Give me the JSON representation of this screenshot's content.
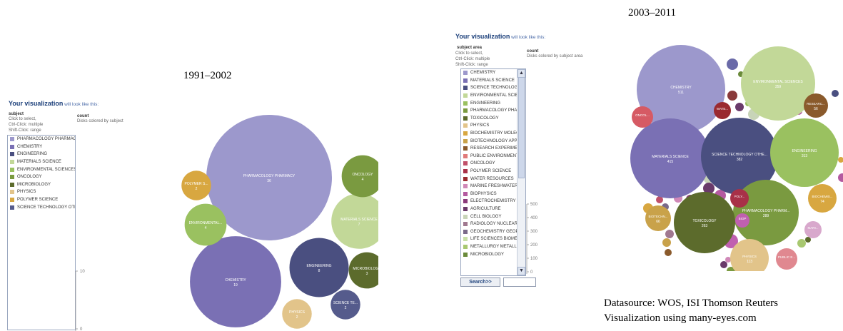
{
  "colors": {
    "PHARMACOLOGY PHARMACY": "#9c98cc",
    "CHEMISTRY": "#7a70b4",
    "ENGINEERING": "#4a4f80",
    "MATERIALS SCIENCE": "#c2d898",
    "ENVIRONMENTAL SCIENCES ECOLOGY": "#9ac160",
    "ONCOLOGY": "#7a9a40",
    "MICROBIOLOGY": "#5c6b2c",
    "PHYSICS": "#e2c48a",
    "POLYMER SCIENCE": "#d8a740",
    "SCIENCE TECHNOLOGY OTHER TOPICS": "#555b8c"
  },
  "left": {
    "title_bold": "Your visualization",
    "title_sub": " will look like this:",
    "subject_label": "subject",
    "hints": [
      "Click to select,",
      "Ctrl-Click: multiple",
      "Shift-Click: range"
    ],
    "count_label": "count",
    "count_desc": "Disks colored by subject",
    "legend": [
      "PHARMACOLOGY PHARMACY",
      "CHEMISTRY",
      "ENGINEERING",
      "MATERIALS SCIENCE",
      "ENVIRONMENTAL SCIENCES EC",
      "ONCOLOGY",
      "MICROBIOLOGY",
      "PHYSICS",
      "POLYMER SCIENCE",
      "SCIENCE TECHNOLOGY OTHER"
    ],
    "legend_colors": [
      "#9c98cc",
      "#7a70b4",
      "#4a4f80",
      "#c2d898",
      "#9ac160",
      "#7a9a40",
      "#5c6b2c",
      "#e2c48a",
      "#d8a740",
      "#555b8c"
    ],
    "size_ticks": [
      "10",
      "0"
    ],
    "period": "1991–2002"
  },
  "right": {
    "title_bold": "Your visualization",
    "title_sub": " will look like this:",
    "subject_label": "subject area",
    "hints": [
      "Click to select,",
      "Ctrl-Click: multiple",
      "Shift-Click: range"
    ],
    "count_label": "count",
    "count_desc": "Disks colored by subject area",
    "legend": [
      "CHEMISTRY",
      "MATERIALS SCIENCE",
      "SCIENCE TECHNOLOGY OTI",
      "ENVIRONMENTAL SCIENCE",
      "ENGINEERING",
      "PHARMACOLOGY PHARMA",
      "TOXICOLOGY",
      "PHYSICS",
      "BIOCHEMISTRY MOLECULA",
      "BIOTECHNOLOGY APPLIED",
      "RESEARCH EXPERIMENTAL",
      "PUBLIC ENVIRONMENTAL C",
      "ONCOLOGY",
      "POLYMER SCIENCE",
      "WATER RESOURCES",
      "MARINE FRESHWATER BIO",
      "BIOPHYSICS",
      "ELECTROCHEMISTRY",
      "AGRICULTURE",
      "CELL BIOLOGY",
      "RADIOLOGY NUCLEAR MED",
      "GEOCHEMISTRY GEOPHYSI",
      "LIFE SCIENCES BIOMEDICII",
      "METALLURGY METALLURGI",
      "MICROBIOLOGY"
    ],
    "legend_colors": [
      "#9c98cc",
      "#7a70b4",
      "#4a4f80",
      "#c2d898",
      "#9ac160",
      "#7a9a40",
      "#5c6b2c",
      "#e2c48a",
      "#d8a740",
      "#c9a24a",
      "#8a5a2c",
      "#e07a7a",
      "#c0506a",
      "#a83048",
      "#9a2a30",
      "#d088b8",
      "#b45aa0",
      "#8a3a7a",
      "#6a3a6a",
      "#c8d4b8",
      "#a07890",
      "#7a6a8a",
      "#c8e0a8",
      "#a8c870",
      "#6a8a3a"
    ],
    "size_ticks": [
      "500",
      "400",
      "300",
      "200",
      "100",
      "0"
    ],
    "search_label": "Search>>",
    "period": "2003–2011"
  },
  "source_lines": [
    "Datasource: WOS, ISI Thomson Reuters",
    "Visualization using many-eyes.com"
  ],
  "chart_data": [
    {
      "type": "bubble",
      "title": "1991–2002",
      "series": [
        {
          "name": "PHARMACOLOGY PHARMACY",
          "label": "PHARMACOLOGY PHARMACY",
          "value": 36
        },
        {
          "name": "CHEMISTRY",
          "label": "CHEMISTRY",
          "value": 19
        },
        {
          "name": "ENGINEERING",
          "label": "ENGINEERING",
          "value": 8
        },
        {
          "name": "MATERIALS SCIENCE",
          "label": "MATERIALS SCIENCE",
          "value": 7
        },
        {
          "name": "ENVIRONMENTAL SCIENCES ECOLOGY",
          "label": "ENVIRONMENTAL...",
          "value": 4
        },
        {
          "name": "ONCOLOGY",
          "label": "ONCOLOGY",
          "value": 4
        },
        {
          "name": "MICROBIOLOGY",
          "label": "MICROBIOLOGY",
          "value": 3
        },
        {
          "name": "PHYSICS",
          "label": "PHYSICS",
          "value": 2
        },
        {
          "name": "POLYMER SCIENCE",
          "label": "POLYMER S...",
          "value": 2
        },
        {
          "name": "SCIENCE TECHNOLOGY OTHER TOPICS",
          "label": "SCIENCE TE...",
          "value": 2
        }
      ]
    },
    {
      "type": "bubble",
      "title": "2003–2011",
      "series": [
        {
          "name": "CHEMISTRY",
          "label": "CHEMISTRY",
          "value": 511
        },
        {
          "name": "MATERIALS SCIENCE",
          "label": "MATERIALS SCIENCE",
          "value": 415
        },
        {
          "name": "SCIENCE TECHNOLOGY OTHER",
          "label": "SCIENCE TECHNOLOGY OTHE...",
          "value": 382
        },
        {
          "name": "ENVIRONMENTAL SCIENCES",
          "label": "ENVIRONMENTAL SCIENCES",
          "value": 359
        },
        {
          "name": "ENGINEERING",
          "label": "ENGINEERING",
          "value": 313
        },
        {
          "name": "PHARMACOLOGY PHARMACY",
          "label": "PHARMACOLOGY PHARM...",
          "value": 289
        },
        {
          "name": "TOXICOLOGY",
          "label": "TOXICOLOGY",
          "value": 263
        },
        {
          "name": "PHYSICS",
          "label": "PHYSICS",
          "value": 113
        },
        {
          "name": "BIOCHEMISTRY",
          "label": "BIOCHEMIS...",
          "value": 74
        },
        {
          "name": "BIOTECHNOLOGY",
          "label": "BIOTECHN...",
          "value": 66
        },
        {
          "name": "RESEARCH",
          "label": "RESEARC...",
          "value": 56
        },
        {
          "name": "PUBLIC ENVIRONMENTAL",
          "label": "PUBLIC E...",
          "value": null
        },
        {
          "name": "ONCOLOGY",
          "label": "ONCOL...",
          "value": null
        },
        {
          "name": "POLYMER SCIENCE",
          "label": "POLY...",
          "value": null
        },
        {
          "name": "WATER RESOURCES",
          "label": "WATE...",
          "value": null
        },
        {
          "name": "BIOPHYSICS",
          "label": "BIOP",
          "value": null
        },
        {
          "name": "MARINE FRESHWATER",
          "label": "MARI...",
          "value": null
        }
      ]
    }
  ]
}
